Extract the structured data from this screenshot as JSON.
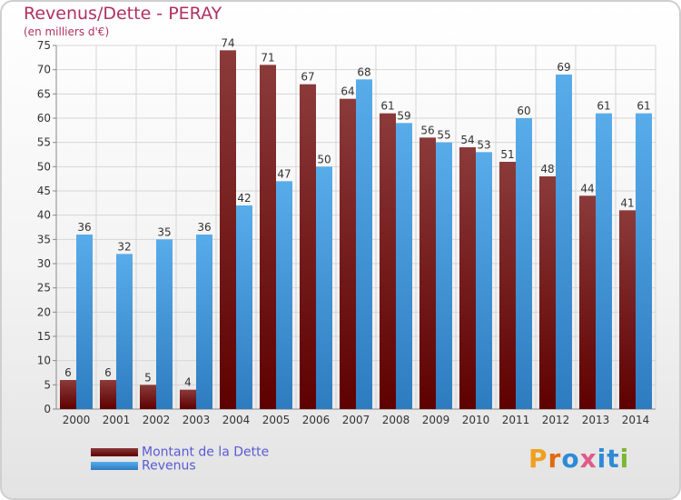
{
  "header": {
    "title": "Revenus/Dette - PERAY",
    "subtitle": "(en milliers d'€)"
  },
  "logo": {
    "text": "Proxiti"
  },
  "colors": {
    "dette_top": "#8b3a3a",
    "dette_bottom": "#5e0000",
    "revenus_top": "#58acea",
    "revenus_bottom": "#2e7cc0",
    "title": "#b03060",
    "legend_text": "#5a5ad6",
    "logo": [
      "#f0a020",
      "#e06a10",
      "#2e8ad8",
      "#e05a8a",
      "#2e8ad8",
      "#2e8ad8",
      "#7ab830"
    ]
  },
  "legend": {
    "dette": "Montant de la Dette",
    "revenus": "Revenus"
  },
  "chart_data": {
    "type": "bar",
    "title": "Revenus/Dette - PERAY",
    "subtitle": "(en milliers d'€)",
    "categories": [
      "2000",
      "2001",
      "2002",
      "2003",
      "2004",
      "2005",
      "2006",
      "2007",
      "2008",
      "2009",
      "2010",
      "2011",
      "2012",
      "2013",
      "2014"
    ],
    "series": [
      {
        "name": "Montant de la Dette",
        "values": [
          6,
          6,
          5,
          4,
          74,
          71,
          67,
          64,
          61,
          56,
          54,
          51,
          48,
          44,
          41
        ]
      },
      {
        "name": "Revenus",
        "values": [
          36,
          32,
          35,
          36,
          42,
          47,
          50,
          68,
          59,
          55,
          53,
          60,
          69,
          61,
          61
        ]
      }
    ],
    "ylim": [
      0,
      75
    ],
    "yticks": [
      0,
      5,
      10,
      15,
      20,
      25,
      30,
      35,
      40,
      45,
      50,
      55,
      60,
      65,
      70,
      75
    ],
    "grid": true,
    "data_labels": true,
    "legend_position": "bottom-left"
  }
}
